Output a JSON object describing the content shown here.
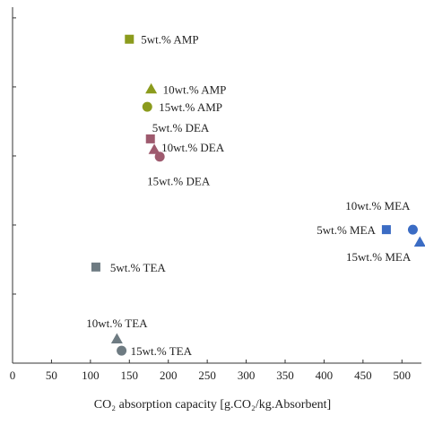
{
  "chart_data": {
    "type": "scatter",
    "xlabel": "CO₂ absorption capacity [g.CO₂/kg.Absorbent]",
    "xlim": [
      0,
      525
    ],
    "ylim": [
      0,
      1
    ],
    "grid": false,
    "x_ticks": [
      0,
      50,
      100,
      150,
      200,
      250,
      300,
      350,
      400,
      450,
      500
    ],
    "y_ticks": [
      0,
      0.194,
      0.388,
      0.582,
      0.776,
      0.97
    ],
    "points": [
      {
        "label": "5wt.% AMP",
        "x": 150,
        "y": 0.91,
        "marker": "square",
        "color": "#8b9b1d"
      },
      {
        "label": "10wt.% AMP",
        "x": 178,
        "y": 0.77,
        "marker": "triangle",
        "color": "#8b9b1d"
      },
      {
        "label": "15wt.% AMP",
        "x": 173,
        "y": 0.72,
        "marker": "circle",
        "color": "#8b9b1d"
      },
      {
        "label": "5wt.% DEA",
        "x": 177,
        "y": 0.63,
        "marker": "square",
        "color": "#9e5a6e"
      },
      {
        "label": "10wt.% DEA",
        "x": 182,
        "y": 0.6,
        "marker": "triangle",
        "color": "#9e5a6e"
      },
      {
        "label": "15wt.% DEA",
        "x": 189,
        "y": 0.58,
        "marker": "circle",
        "color": "#9e5a6e"
      },
      {
        "label": "5wt.% MEA",
        "x": 480,
        "y": 0.375,
        "marker": "square",
        "color": "#3b6cc4"
      },
      {
        "label": "10wt.% MEA",
        "x": 514,
        "y": 0.375,
        "marker": "circle",
        "color": "#3b6cc4"
      },
      {
        "label": "15wt.% MEA",
        "x": 523,
        "y": 0.34,
        "marker": "triangle",
        "color": "#3b6cc4"
      },
      {
        "label": "5wt.% TEA",
        "x": 107,
        "y": 0.27,
        "marker": "square",
        "color": "#6e7b82"
      },
      {
        "label": "10wt.% TEA",
        "x": 134,
        "y": 0.068,
        "marker": "triangle",
        "color": "#6e7b82"
      },
      {
        "label": "15wt.% TEA",
        "x": 140,
        "y": 0.035,
        "marker": "circle",
        "color": "#6e7b82"
      }
    ]
  }
}
